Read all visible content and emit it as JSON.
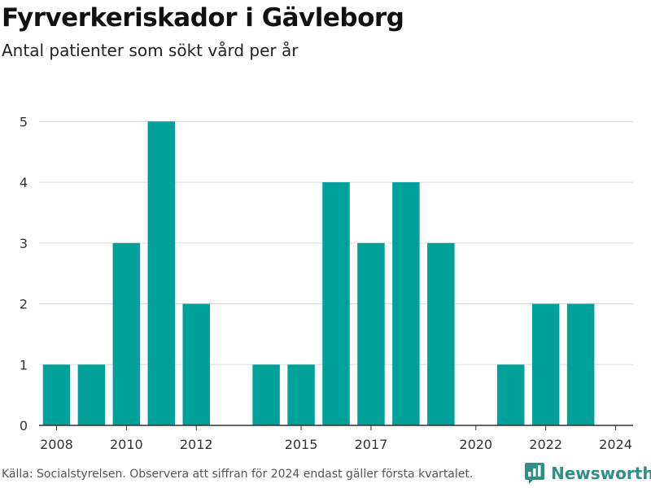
{
  "header": {
    "title": "Fyrverkeriskador i Gävleborg",
    "subtitle": "Antal patienter som sökt vård per år"
  },
  "footer": {
    "source": "Källa: Socialstyrelsen. Observera att siffran för 2024 endast gäller första kvartalet.",
    "brand": "Newsworthy"
  },
  "colors": {
    "bar": "#00a19a",
    "brand": "#2f8f84"
  },
  "chart_data": {
    "type": "bar",
    "categories": [
      2008,
      2009,
      2010,
      2011,
      2012,
      2013,
      2014,
      2015,
      2016,
      2017,
      2018,
      2019,
      2020,
      2021,
      2022,
      2023,
      2024
    ],
    "values": [
      1,
      1,
      3,
      5,
      2,
      0,
      1,
      1,
      4,
      3,
      4,
      3,
      0,
      1,
      2,
      2,
      0
    ],
    "x_ticks": [
      2008,
      2010,
      2012,
      2015,
      2017,
      2020,
      2022,
      2024
    ],
    "y_ticks": [
      0,
      1,
      2,
      3,
      4,
      5
    ],
    "ylim": [
      0,
      5.5
    ],
    "grid": true,
    "title": "Fyrverkeriskador i Gävleborg",
    "subtitle": "Antal patienter som sökt vård per år",
    "xlabel": "",
    "ylabel": ""
  }
}
